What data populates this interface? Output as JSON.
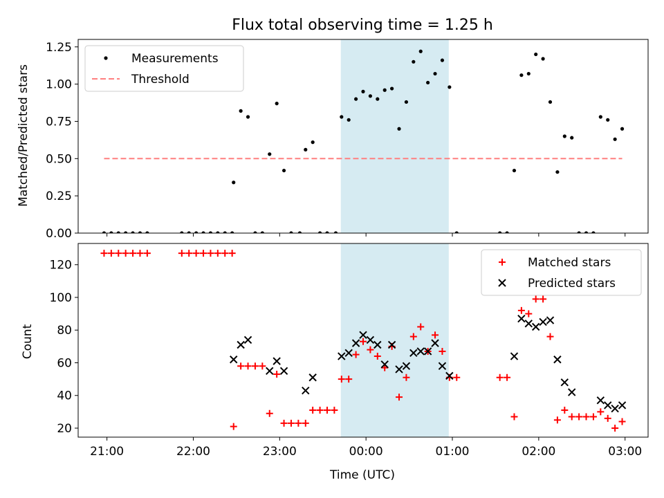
{
  "chart_data": {
    "title": "Flux total observing time = 1.25 h",
    "xlabel": "Time (UTC)",
    "x_unit": "minutes relative to 00:00 UTC",
    "x_ticks": [
      {
        "value": -180,
        "label": "21:00"
      },
      {
        "value": -120,
        "label": "22:00"
      },
      {
        "value": -60,
        "label": "23:00"
      },
      {
        "value": 0,
        "label": "00:00"
      },
      {
        "value": 60,
        "label": "01:00"
      },
      {
        "value": 120,
        "label": "02:00"
      },
      {
        "value": 180,
        "label": "03:00"
      }
    ],
    "xlim": [
      -200,
      196
    ],
    "highlight_band": {
      "from": -17.5,
      "to": 57.5,
      "color": "#add8e6"
    },
    "panels": [
      {
        "type": "scatter",
        "ylabel": "Matched/Predicted stars",
        "ylim": [
          0,
          1.3
        ],
        "yticks": [
          0.0,
          0.25,
          0.5,
          0.75,
          1.0,
          1.25
        ],
        "ytick_labels": [
          "0.00",
          "0.25",
          "0.50",
          "0.75",
          "1.00",
          "1.25"
        ],
        "legend": "upper left",
        "series": [
          {
            "name": "Measurements",
            "marker": "dot",
            "color": "#000000",
            "points": [
              [
                -182,
                0
              ],
              [
                -177,
                0
              ],
              [
                -172,
                0
              ],
              [
                -167,
                0
              ],
              [
                -162,
                0
              ],
              [
                -157,
                0
              ],
              [
                -152,
                0
              ],
              [
                -128,
                0
              ],
              [
                -123,
                0
              ],
              [
                -118,
                0
              ],
              [
                -113,
                0
              ],
              [
                -108,
                0
              ],
              [
                -103,
                0
              ],
              [
                -98,
                0
              ],
              [
                -93,
                0
              ],
              [
                -92,
                0.34
              ],
              [
                -87,
                0.82
              ],
              [
                -82,
                0.78
              ],
              [
                -77,
                0
              ],
              [
                -72,
                0
              ],
              [
                -67,
                0.53
              ],
              [
                -62,
                0.87
              ],
              [
                -57,
                0.42
              ],
              [
                -52,
                0
              ],
              [
                -46,
                0
              ],
              [
                -42,
                0.56
              ],
              [
                -37,
                0.61
              ],
              [
                -32,
                0
              ],
              [
                -27,
                0
              ],
              [
                -21,
                0
              ],
              [
                -17,
                0.78
              ],
              [
                -12,
                0.76
              ],
              [
                -7,
                0.9
              ],
              [
                -2,
                0.95
              ],
              [
                3,
                0.92
              ],
              [
                8,
                0.9
              ],
              [
                13,
                0.96
              ],
              [
                18,
                0.97
              ],
              [
                23,
                0.7
              ],
              [
                28,
                0.88
              ],
              [
                33,
                1.15
              ],
              [
                38,
                1.22
              ],
              [
                43,
                1.01
              ],
              [
                48,
                1.07
              ],
              [
                53,
                1.16
              ],
              [
                58,
                0.98
              ],
              [
                63,
                0
              ],
              [
                93,
                0
              ],
              [
                98,
                0
              ],
              [
                103,
                0.42
              ],
              [
                108,
                1.06
              ],
              [
                113,
                1.07
              ],
              [
                118,
                1.2
              ],
              [
                123,
                1.17
              ],
              [
                128,
                0.88
              ],
              [
                133,
                0.41
              ],
              [
                138,
                0.65
              ],
              [
                143,
                0.64
              ],
              [
                148,
                0
              ],
              [
                153,
                0
              ],
              [
                158,
                0
              ],
              [
                163,
                0.78
              ],
              [
                168,
                0.76
              ],
              [
                173,
                0.63
              ],
              [
                178,
                0.7
              ]
            ]
          },
          {
            "name": "Threshold",
            "marker": "dashed-line",
            "color": "#ff7f7f",
            "points": [
              [
                -182,
                0.5
              ],
              [
                178,
                0.5
              ]
            ]
          }
        ]
      },
      {
        "type": "scatter",
        "ylabel": "Count",
        "ylim": [
          14.5,
          133
        ],
        "yticks": [
          20,
          40,
          60,
          80,
          100,
          120
        ],
        "ytick_labels": [
          "20",
          "40",
          "60",
          "80",
          "100",
          "120"
        ],
        "legend": "upper right",
        "series": [
          {
            "name": "Matched stars",
            "marker": "plus",
            "color": "#ff0000",
            "points": [
              [
                -182,
                127
              ],
              [
                -177,
                127
              ],
              [
                -172,
                127
              ],
              [
                -167,
                127
              ],
              [
                -162,
                127
              ],
              [
                -157,
                127
              ],
              [
                -152,
                127
              ],
              [
                -128,
                127
              ],
              [
                -123,
                127
              ],
              [
                -118,
                127
              ],
              [
                -113,
                127
              ],
              [
                -108,
                127
              ],
              [
                -103,
                127
              ],
              [
                -98,
                127
              ],
              [
                -93,
                127
              ],
              [
                -92,
                21
              ],
              [
                -87,
                58
              ],
              [
                -82,
                58
              ],
              [
                -77,
                58
              ],
              [
                -72,
                58
              ],
              [
                -67,
                29
              ],
              [
                -62,
                53
              ],
              [
                -57,
                23
              ],
              [
                -52,
                23
              ],
              [
                -47,
                23
              ],
              [
                -42,
                23
              ],
              [
                -37,
                31
              ],
              [
                -32,
                31
              ],
              [
                -27,
                31
              ],
              [
                -22,
                31
              ],
              [
                -17,
                50
              ],
              [
                -12,
                50
              ],
              [
                -7,
                65
              ],
              [
                -2,
                73
              ],
              [
                3,
                68
              ],
              [
                8,
                64
              ],
              [
                13,
                57
              ],
              [
                18,
                70
              ],
              [
                23,
                39
              ],
              [
                28,
                51
              ],
              [
                33,
                76
              ],
              [
                38,
                82
              ],
              [
                43,
                67
              ],
              [
                48,
                77
              ],
              [
                53,
                67
              ],
              [
                58,
                51
              ],
              [
                63,
                51
              ],
              [
                93,
                51
              ],
              [
                98,
                51
              ],
              [
                103,
                27
              ],
              [
                108,
                92
              ],
              [
                113,
                90
              ],
              [
                118,
                99
              ],
              [
                123,
                99
              ],
              [
                128,
                76
              ],
              [
                133,
                25
              ],
              [
                138,
                31
              ],
              [
                143,
                27
              ],
              [
                148,
                27
              ],
              [
                153,
                27
              ],
              [
                158,
                27
              ],
              [
                163,
                30
              ],
              [
                168,
                26
              ],
              [
                173,
                20
              ],
              [
                178,
                24
              ]
            ]
          },
          {
            "name": "Predicted stars",
            "marker": "x",
            "color": "#000000",
            "points": [
              [
                -92,
                62
              ],
              [
                -87,
                71
              ],
              [
                -82,
                74
              ],
              [
                -67,
                55
              ],
              [
                -62,
                61
              ],
              [
                -57,
                55
              ],
              [
                -42,
                43
              ],
              [
                -37,
                51
              ],
              [
                -17,
                64
              ],
              [
                -12,
                66
              ],
              [
                -7,
                72
              ],
              [
                -2,
                77
              ],
              [
                3,
                74
              ],
              [
                8,
                71
              ],
              [
                13,
                59
              ],
              [
                18,
                71
              ],
              [
                23,
                56
              ],
              [
                28,
                58
              ],
              [
                33,
                66
              ],
              [
                38,
                67
              ],
              [
                43,
                67
              ],
              [
                48,
                72
              ],
              [
                53,
                58
              ],
              [
                58,
                52
              ],
              [
                103,
                64
              ],
              [
                108,
                87
              ],
              [
                113,
                84
              ],
              [
                118,
                82
              ],
              [
                123,
                85
              ],
              [
                128,
                86
              ],
              [
                133,
                62
              ],
              [
                138,
                48
              ],
              [
                143,
                42
              ],
              [
                163,
                37
              ],
              [
                168,
                34
              ],
              [
                173,
                32
              ],
              [
                178,
                34
              ]
            ]
          }
        ]
      }
    ]
  }
}
